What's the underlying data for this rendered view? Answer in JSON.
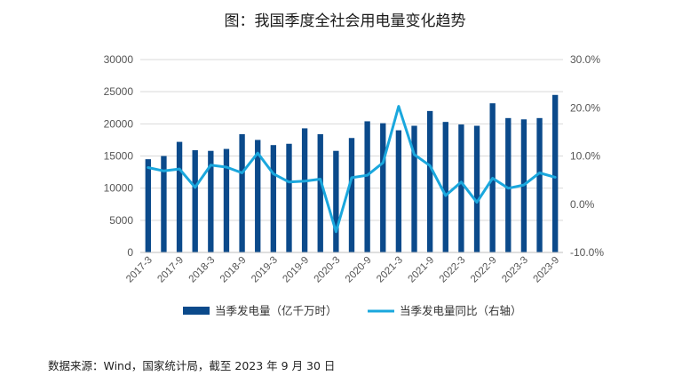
{
  "title": "图：我国季度全社会用电量变化趋势",
  "source": "数据来源：Wind，国家统计局，截至 2023 年 9 月 30 日",
  "chart_data": {
    "type": "bar",
    "categories": [
      "2017-3",
      "2017-6",
      "2017-9",
      "2017-12",
      "2018-3",
      "2018-6",
      "2018-9",
      "2018-12",
      "2019-3",
      "2019-6",
      "2019-9",
      "2019-12",
      "2020-3",
      "2020-6",
      "2020-9",
      "2020-12",
      "2021-3",
      "2021-6",
      "2021-9",
      "2021-12",
      "2022-3",
      "2022-6",
      "2022-9",
      "2022-12",
      "2023-3",
      "2023-6",
      "2023-9"
    ],
    "x_tick_labels": [
      "2017-3",
      "2017-9",
      "2018-3",
      "2018-9",
      "2019-3",
      "2019-9",
      "2020-3",
      "2020-9",
      "2021-3",
      "2021-9",
      "2022-3",
      "2022-9",
      "2023-3",
      "2023-9"
    ],
    "series": [
      {
        "name": "当季发电量（亿千万时）",
        "type": "bar",
        "axis": "left",
        "color": "#0b4a8b",
        "values": [
          14500,
          15000,
          17200,
          15900,
          15800,
          16100,
          18400,
          17500,
          16700,
          16900,
          19300,
          18400,
          15800,
          17800,
          20400,
          20100,
          19000,
          19700,
          22000,
          20300,
          19900,
          19700,
          23200,
          20900,
          20700,
          20900,
          24500
        ]
      },
      {
        "name": "当季发电量同比（右轴）",
        "type": "line",
        "axis": "right",
        "color": "#1aa7dd",
        "values": [
          7.6,
          6.9,
          7.3,
          3.5,
          8.1,
          7.7,
          6.5,
          10.6,
          6.3,
          4.6,
          4.8,
          5.2,
          -5.7,
          5.5,
          6.0,
          8.6,
          20.3,
          10.3,
          8.0,
          1.8,
          4.6,
          0.4,
          5.4,
          3.3,
          4.0,
          6.5,
          5.6
        ]
      }
    ],
    "y_left": {
      "min": 0,
      "max": 30000,
      "ticks": [
        "0",
        "5000",
        "10000",
        "15000",
        "20000",
        "25000",
        "30000"
      ]
    },
    "y_right": {
      "min": -10,
      "max": 30,
      "ticks": [
        "-10.0%",
        "0.0%",
        "10.0%",
        "20.0%",
        "30.0%"
      ]
    },
    "grid": true,
    "legend_position": "bottom"
  }
}
